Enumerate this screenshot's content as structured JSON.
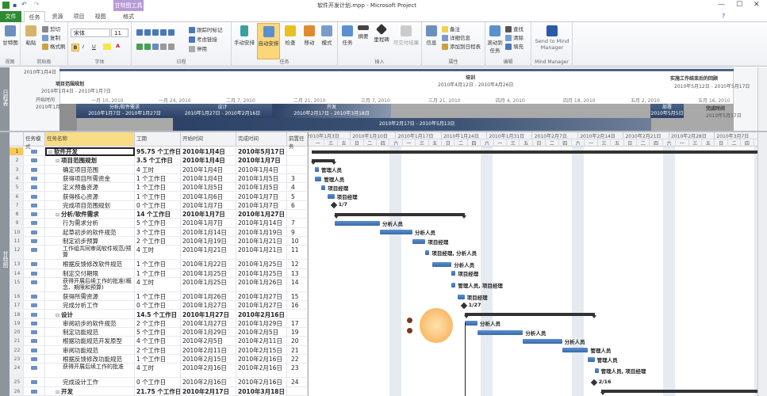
{
  "window": {
    "title": "软件开发计划.mpp - Microsoft Project",
    "context_tab": "甘特图工具",
    "min": "—",
    "max": "☐",
    "close": "✕"
  },
  "tabs": [
    "文件",
    "任务",
    "资源",
    "项目",
    "视图",
    "格式"
  ],
  "ribbon": {
    "view": {
      "label": "视图",
      "gantt": "甘特图"
    },
    "clipboard": {
      "label": "剪贴板",
      "paste": "粘贴",
      "cut": "剪切",
      "copy": "复制",
      "format_painter": "格式刷"
    },
    "font": {
      "label": "字体",
      "family": "宋体",
      "size": "11",
      "bold": "B",
      "italic": "I",
      "underline": "U",
      "color": "A"
    },
    "schedule": {
      "label": "日程",
      "mark_on_track": "跟踪时标记",
      "respect_links": "考虑链接",
      "inactivate": "停用"
    },
    "tasks": {
      "label": "任务",
      "manual": "手动安排",
      "auto": "自动安排",
      "inspect": "检查",
      "move": "移动",
      "mode": "模式"
    },
    "insert": {
      "label": "插入",
      "task": "任务",
      "summary": "摘要",
      "milestone": "里程碑",
      "deliverable": "可交付结果"
    },
    "properties": {
      "label": "属性",
      "info": "信息",
      "notes": "备注",
      "details": "详细信息",
      "add_timeline": "添加到日程表"
    },
    "editing": {
      "label": "编辑",
      "scroll": "滚动到任务",
      "find": "查找",
      "clear": "清除",
      "fill": "填充"
    },
    "mindmanager": {
      "label": "Mind Manager",
      "send": "Send to Mind Manager"
    }
  },
  "timeline": {
    "side_label": "日程表",
    "start_top": "2010年1月4日",
    "start_label": "开始时间",
    "start_date": "2010年1月4日",
    "finish_label": "完成时间",
    "finish_date": "2010年5月17日",
    "scale": [
      "一月 10, 2010",
      "一月 24, 2010",
      "二月 7, 2010",
      "二月 21, 2010",
      "三月 7, 2010",
      "三月 21, 2010",
      "四月 4, 2010",
      "四月 18, 2010",
      "五月 2, 2010",
      "五月 16, 2010"
    ],
    "callouts": [
      {
        "name": "项目范围规划",
        "dates": "2010年1月4日 - 2010年1月7日"
      },
      {
        "name": "培训",
        "dates": "2010年4月12日 - 2010年4月26日"
      },
      {
        "name": "实施工作结束后的回顾",
        "dates": "2010年5月12日 - 2010年5月17日"
      }
    ],
    "bars": [
      {
        "name": "分析/软件需求",
        "dates": "2010年1月7日 - 2010年1月27日"
      },
      {
        "name": "设计",
        "dates": "2010年1月27日 - 2010年2月16日"
      },
      {
        "name": "开发",
        "dates": "2010年2月17日 - 2010年3月18日"
      },
      {
        "name": "部署",
        "dates": "2010年5月5日"
      }
    ],
    "lower_bar": "2010年2月17日 - 2010年5月13日"
  },
  "table": {
    "side_label": "甘特图",
    "headers": {
      "mode": "任务模式",
      "name": "任务名称",
      "duration": "工期",
      "start": "开始时间",
      "finish": "完成时间",
      "pred": "前置任务"
    },
    "rows": [
      {
        "id": "1",
        "name": "软件开发",
        "dur": "95.75 个工作日",
        "start": "2010年1月4日",
        "finish": "2010年5月17日",
        "pred": "",
        "lvl": 0,
        "sum": true,
        "res": ""
      },
      {
        "id": "2",
        "name": "项目范围规划",
        "dur": "3.5 个工作日",
        "start": "2010年1月4日",
        "finish": "2010年1月7日",
        "pred": "",
        "lvl": 1,
        "sum": true,
        "res": ""
      },
      {
        "id": "3",
        "name": "确定项目范围",
        "dur": "4 工时",
        "start": "2010年1月4日",
        "finish": "2010年1月4日",
        "pred": "",
        "lvl": 2,
        "res": "管理人员"
      },
      {
        "id": "4",
        "name": "获得项目所需资金",
        "dur": "1 个工作日",
        "start": "2010年1月4日",
        "finish": "2010年1月5日",
        "pred": "3",
        "lvl": 2,
        "res": "管理人员"
      },
      {
        "id": "5",
        "name": "定义预备资源",
        "dur": "1 个工作日",
        "start": "2010年1月5日",
        "finish": "2010年1月5日",
        "pred": "4",
        "lvl": 2,
        "res": "项目经理"
      },
      {
        "id": "6",
        "name": "获得核心资源",
        "dur": "1 个工作日",
        "start": "2010年1月6日",
        "finish": "2010年1月7日",
        "pred": "5",
        "lvl": 2,
        "res": "项目经理"
      },
      {
        "id": "7",
        "name": "完成项目范围规划",
        "dur": "0 个工作日",
        "start": "2010年1月7日",
        "finish": "2010年1月7日",
        "pred": "6",
        "lvl": 2,
        "ms": true,
        "res": "1/7"
      },
      {
        "id": "8",
        "name": "分析/软件需求",
        "dur": "14 个工作日",
        "start": "2010年1月7日",
        "finish": "2010年1月27日",
        "pred": "",
        "lvl": 1,
        "sum": true,
        "res": ""
      },
      {
        "id": "9",
        "name": "行为需求分析",
        "dur": "5 个工作日",
        "start": "2010年1月7日",
        "finish": "2010年1月14日",
        "pred": "7",
        "lvl": 2,
        "res": "分析人员"
      },
      {
        "id": "10",
        "name": "起草初步的软件规范",
        "dur": "3 个工作日",
        "start": "2010年1月14日",
        "finish": "2010年1月19日",
        "pred": "9",
        "lvl": 2,
        "res": "分析人员"
      },
      {
        "id": "11",
        "name": "制定初步预算",
        "dur": "2 个工作日",
        "start": "2010年1月19日",
        "finish": "2010年1月21日",
        "pred": "10",
        "lvl": 2,
        "res": "项目经理"
      },
      {
        "id": "12",
        "name": "工作组共同审阅软件规范/预算",
        "dur": "4 工时",
        "start": "2010年1月21日",
        "finish": "2010年1月21日",
        "pred": "11",
        "lvl": 2,
        "tall": true,
        "res": "项目经理, 分析人员"
      },
      {
        "id": "13",
        "name": "根据反馈修改软件规范",
        "dur": "1 个工作日",
        "start": "2010年1月22日",
        "finish": "2010年1月25日",
        "pred": "12",
        "lvl": 2,
        "res": "分析人员"
      },
      {
        "id": "14",
        "name": "制定交付期限",
        "dur": "1 个工作日",
        "start": "2010年1月25日",
        "finish": "2010年1月25日",
        "pred": "13",
        "lvl": 2,
        "res": "项目经理"
      },
      {
        "id": "15",
        "name": "获得开展后续工作的批准(概念、期限和预算)",
        "dur": "4 工时",
        "start": "2010年1月25日",
        "finish": "2010年1月26日",
        "pred": "14",
        "lvl": 2,
        "tall": true,
        "res": "管理人员, 项目经理"
      },
      {
        "id": "16",
        "name": "获得所需资源",
        "dur": "1 个工作日",
        "start": "2010年1月26日",
        "finish": "2010年1月27日",
        "pred": "15",
        "lvl": 2,
        "res": "项目经理"
      },
      {
        "id": "17",
        "name": "完成分析工作",
        "dur": "0 个工作日",
        "start": "2010年1月27日",
        "finish": "2010年1月27日",
        "pred": "16",
        "lvl": 2,
        "ms": true,
        "res": "1/27"
      },
      {
        "id": "18",
        "name": "设计",
        "dur": "14.5 个工作日",
        "start": "2010年1月27日",
        "finish": "2010年2月16日",
        "pred": "",
        "lvl": 1,
        "sum": true,
        "res": ""
      },
      {
        "id": "19",
        "name": "审阅初步的软件规范",
        "dur": "2 个工作日",
        "start": "2010年1月27日",
        "finish": "2010年1月29日",
        "pred": "17",
        "lvl": 2,
        "res": "分析人员"
      },
      {
        "id": "20",
        "name": "制定功能规范",
        "dur": "5 个工作日",
        "start": "2010年1月29日",
        "finish": "2010年2月5日",
        "pred": "19",
        "lvl": 2,
        "res": "分析人员"
      },
      {
        "id": "21",
        "name": "根据功能规范开发原型",
        "dur": "4 个工作日",
        "start": "2010年2月5日",
        "finish": "2010年2月11日",
        "pred": "20",
        "lvl": 2,
        "res": "分析人员"
      },
      {
        "id": "22",
        "name": "审阅功能规范",
        "dur": "2 个工作日",
        "start": "2010年2月11日",
        "finish": "2010年2月15日",
        "pred": "21",
        "lvl": 2,
        "res": "管理人员"
      },
      {
        "id": "23",
        "name": "根据反馈修改功能规范",
        "dur": "1 个工作日",
        "start": "2010年2月15日",
        "finish": "2010年2月16日",
        "pred": "22",
        "lvl": 2,
        "res": "管理人员"
      },
      {
        "id": "24",
        "name": "获得开展后续工作的批准",
        "dur": "4 工时",
        "start": "2010年2月16日",
        "finish": "2010年2月16日",
        "pred": "23",
        "lvl": 2,
        "tall": true,
        "res": "管理人员, 项目经理"
      },
      {
        "id": "25",
        "name": "完成设计工作",
        "dur": "0 个工作日",
        "start": "2010年2月16日",
        "finish": "2010年2月16日",
        "pred": "24",
        "lvl": 2,
        "ms": true,
        "res": "2/16"
      },
      {
        "id": "26",
        "name": "开发",
        "dur": "21.75 个工作日",
        "start": "2010年2月17日",
        "finish": "2010年3月18日",
        "pred": "",
        "lvl": 1,
        "sum": true,
        "res": ""
      }
    ]
  },
  "gantt": {
    "weeks": [
      "2010年1月3日",
      "2010年1月10日",
      "2010年1月17日",
      "2010年1月24日",
      "2010年1月31日",
      "2010年2月7日",
      "2010年2月14日",
      "2010年2月21日",
      "2010年2月28日",
      "2010年3月7日"
    ],
    "day_labels": [
      "一",
      "三",
      "五",
      "日",
      "二",
      "四",
      "六"
    ],
    "colors": {
      "task": "#5b8fd0",
      "summary": "#333333",
      "weekend": "#e6ebf2"
    }
  }
}
